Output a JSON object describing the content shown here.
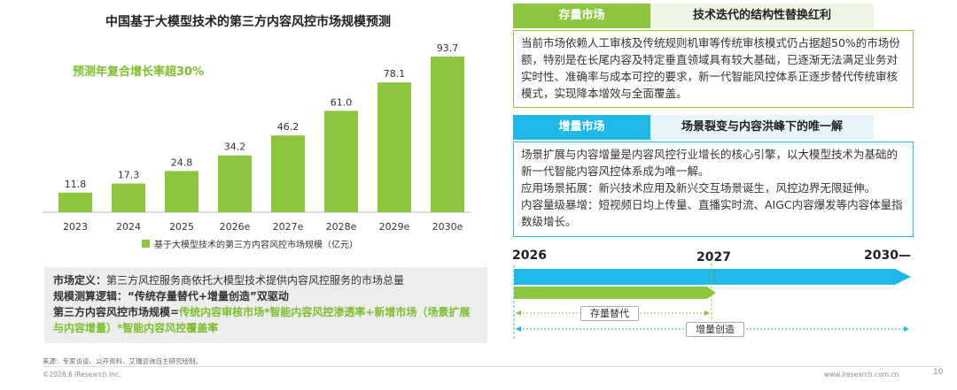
{
  "chart_data": {
    "type": "bar",
    "title": "中国基于大模型技术的第三方内容风控市场规模预测",
    "categories": [
      "2023",
      "2024",
      "2025",
      "2026e",
      "2027e",
      "2028e",
      "2029e",
      "2030e"
    ],
    "series": [
      {
        "name": "基于大模型技术的第三方内容风控市场规模（亿元）",
        "values": [
          11.8,
          17.3,
          24.8,
          34.2,
          46.2,
          61.0,
          78.1,
          93.7
        ]
      }
    ],
    "value_labels": [
      "11.8",
      "17.3",
      "24.8",
      "34.2",
      "46.2",
      "61.0",
      "78.1",
      "93.7"
    ],
    "annotation": "预测年复合增长率超30%",
    "bar_color": "#8cc63f",
    "ylim": [
      0,
      100
    ],
    "legend_position": "bottom",
    "grid": false
  },
  "definition": {
    "line1_label": "市场定义：",
    "line1_text": "第三方风控服务商依托大模型技术提供内容风控服务的市场总量",
    "line2_label": "规模测算逻辑：",
    "line2_text": "“传统存量替代+增量创造”双驱动",
    "line3_label": "第三方内容风控市场规模=",
    "line3_text": "传统内容审核市场*智能内容风控渗透率+新增市场（场景扩展与内容增量）*智能内容风控覆盖率"
  },
  "stock_market": {
    "tag": "存量市场",
    "subtitle": "技术迭代的结构性替换红利",
    "body": "当前市场依赖人工审核及传统规则机审等传统审核模式仍占据超50%的市场份额，特别是在长尾内容及特定垂直领域具有较大基础，已逐渐无法满足业务对实时性、准确率与成本可控的要求，新一代智能风控体系正逐步替代传统审核模式，实现降本增效与全面覆盖。"
  },
  "increment_market": {
    "tag": "增量市场",
    "subtitle": "场景裂变与内容洪峰下的唯一解",
    "line1": "场景扩展与内容增量是内容风控行业增长的核心引擎，以大模型技术为基础的新一代智能内容风控体系成为唯一解。",
    "line2": "应用场景拓展：新兴技术应用及新兴交互场景诞生，风控边界无限延伸。",
    "line3": "内容量级暴增：短视频日均上传量、直播实时流、AIGC内容爆发等内容体量指数级增长。"
  },
  "timeline": {
    "start": "2026",
    "mid": "2027",
    "end": "2030—",
    "stock_label": "存量替代",
    "increment_label": "增量创造",
    "blue": "#1fb9e8",
    "green": "#8cc63f"
  },
  "footer": {
    "source": "来源：专家访谈、公开资料、艾瑞咨询自主研究绘制。",
    "copyright": "©2026.6 iResearch Inc.",
    "url": "www.iresearch.com.cn",
    "page": "10"
  }
}
